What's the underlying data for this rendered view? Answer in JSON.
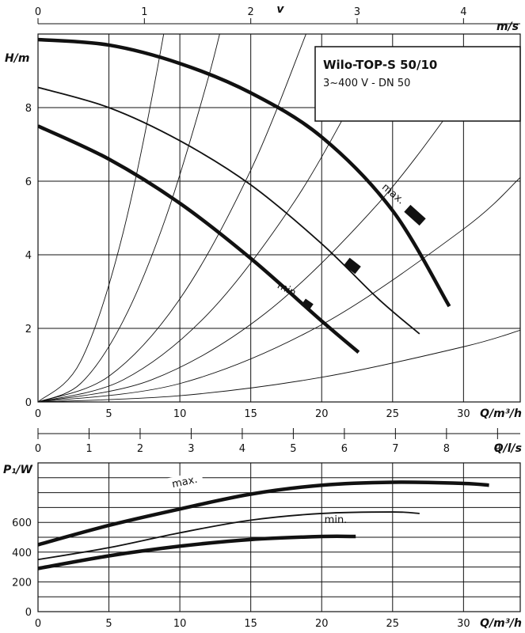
{
  "title_box": {
    "title": "Wilo-TOP-S 50/10",
    "subtitle": "3~400 V - DN 50"
  },
  "chart_data": [
    {
      "type": "line",
      "name": "head",
      "xlabel": "Q/m³/h",
      "ylabel": "H/m",
      "xlim": [
        0,
        34
      ],
      "ylim": [
        0,
        10
      ],
      "xticks": [
        0,
        5,
        10,
        15,
        20,
        25,
        30
      ],
      "yticks": [
        0,
        2,
        4,
        6,
        8
      ],
      "grid": true,
      "top_axis": {
        "label": "v",
        "unit": "m/s",
        "ticks": [
          0,
          1,
          2,
          3,
          4
        ],
        "q_per_unit": 7.5
      },
      "series": [
        {
          "name": "max.",
          "weight": "thick",
          "x": [
            0,
            5,
            10,
            15,
            20,
            25,
            29
          ],
          "y": [
            9.85,
            9.7,
            9.2,
            8.4,
            7.2,
            5.2,
            2.6
          ]
        },
        {
          "name": "",
          "weight": "thin",
          "x": [
            0,
            5,
            10,
            15,
            20,
            24,
            26.9
          ],
          "y": [
            8.55,
            8.0,
            7.1,
            5.9,
            4.3,
            2.8,
            1.85
          ]
        },
        {
          "name": "min.",
          "weight": "thick",
          "x": [
            0,
            5,
            10,
            15,
            20,
            22.6
          ],
          "y": [
            7.5,
            6.6,
            5.4,
            3.9,
            2.2,
            1.35
          ]
        }
      ],
      "system_curves": [
        {
          "x": [
            0,
            3,
            6,
            9,
            11
          ],
          "y": [
            0,
            1.1,
            4.6,
            10.3,
            15.4
          ]
        },
        {
          "x": [
            0,
            3,
            6,
            9,
            12,
            13.6
          ],
          "y": [
            0,
            0.5,
            2.2,
            5.0,
            8.8,
            11.3
          ]
        },
        {
          "x": [
            0,
            5,
            10,
            15,
            19
          ],
          "y": [
            0,
            0.7,
            2.8,
            6.3,
            10.1
          ]
        },
        {
          "x": [
            0,
            6,
            12,
            18,
            22.5
          ],
          "y": [
            0,
            0.6,
            2.4,
            5.4,
            8.4
          ]
        },
        {
          "x": [
            0,
            8,
            16,
            24,
            30
          ],
          "y": [
            0,
            0.6,
            2.4,
            5.4,
            8.4
          ]
        },
        {
          "x": [
            0,
            10,
            20,
            30,
            34
          ],
          "y": [
            0,
            0.5,
            2.1,
            4.7,
            6.1
          ]
        },
        {
          "x": [
            0,
            10,
            20,
            30,
            34
          ],
          "y": [
            0,
            0.17,
            0.67,
            1.5,
            1.95
          ]
        }
      ],
      "annotations": [
        "max.",
        "min."
      ]
    },
    {
      "type": "line",
      "name": "power",
      "xlabel": "Q/m³/h",
      "ylabel": "P₁/W",
      "xlim": [
        0,
        34
      ],
      "ylim": [
        0,
        1000
      ],
      "xticks": [
        0,
        5,
        10,
        15,
        20,
        25,
        30
      ],
      "yticks": [
        0,
        200,
        400,
        600
      ],
      "grid": true,
      "top_axis": {
        "label": "Q/l/s",
        "ticks": [
          0,
          1,
          2,
          3,
          4,
          5,
          6,
          7,
          8,
          9
        ],
        "q_per_unit": 3.6
      },
      "series": [
        {
          "name": "max.",
          "weight": "thick",
          "x": [
            0,
            5,
            10,
            15,
            20,
            25,
            30,
            31.8
          ],
          "y": [
            450,
            580,
            690,
            790,
            850,
            870,
            862,
            850
          ]
        },
        {
          "name": "",
          "weight": "thin",
          "x": [
            0,
            5,
            10,
            15,
            20,
            25,
            26.9
          ],
          "y": [
            350,
            430,
            530,
            615,
            660,
            670,
            660
          ]
        },
        {
          "name": "min.",
          "weight": "thick",
          "x": [
            0,
            5,
            10,
            15,
            20,
            22.4
          ],
          "y": [
            290,
            375,
            440,
            485,
            505,
            505
          ]
        }
      ],
      "annotations": [
        "max.",
        "min."
      ]
    }
  ]
}
